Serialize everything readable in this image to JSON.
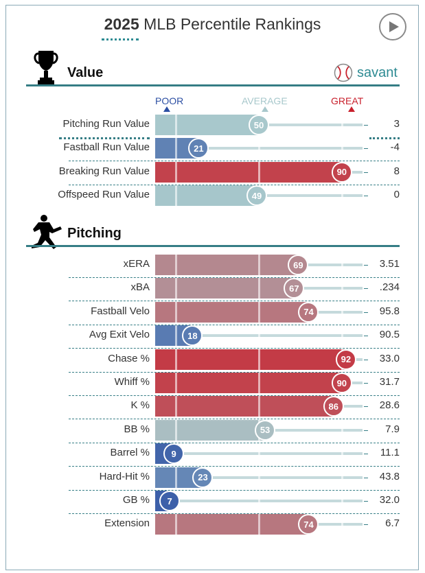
{
  "header": {
    "title_year": "2025",
    "title_rest": " MLB Percentile Rankings",
    "play_icon": "play-icon",
    "brand": "savant",
    "brand_icon": "baseball-icon"
  },
  "scale": {
    "poor": "POOR",
    "average": "AVERAGE",
    "great": "GREAT",
    "poor_color": "#2c4fa3",
    "average_color": "#a8c8cc",
    "great_color": "#c8202c"
  },
  "sections": {
    "value": {
      "title": "Value",
      "icon": "trophy-icon"
    },
    "pitching": {
      "title": "Pitching",
      "icon": "pitcher-icon"
    }
  },
  "chart_data": {
    "type": "bar",
    "xlim": [
      0,
      100
    ],
    "groups": [
      {
        "name": "Value",
        "rows": [
          {
            "label": "Pitching Run Value",
            "percentile": 50,
            "value": "3"
          },
          {
            "label": "Fastball Run Value",
            "percentile": 21,
            "value": "-4"
          },
          {
            "label": "Breaking Run Value",
            "percentile": 90,
            "value": "8"
          },
          {
            "label": "Offspeed Run Value",
            "percentile": 49,
            "value": "0"
          }
        ]
      },
      {
        "name": "Pitching",
        "rows": [
          {
            "label": "xERA",
            "percentile": 69,
            "value": "3.51"
          },
          {
            "label": "xBA",
            "percentile": 67,
            "value": ".234"
          },
          {
            "label": "Fastball Velo",
            "percentile": 74,
            "value": "95.8"
          },
          {
            "label": "Avg Exit Velo",
            "percentile": 18,
            "value": "90.5"
          },
          {
            "label": "Chase %",
            "percentile": 92,
            "value": "33.0"
          },
          {
            "label": "Whiff %",
            "percentile": 90,
            "value": "31.7"
          },
          {
            "label": "K %",
            "percentile": 86,
            "value": "28.6"
          },
          {
            "label": "BB %",
            "percentile": 53,
            "value": "7.9"
          },
          {
            "label": "Barrel %",
            "percentile": 9,
            "value": "11.1"
          },
          {
            "label": "Hard-Hit %",
            "percentile": 23,
            "value": "43.8"
          },
          {
            "label": "GB %",
            "percentile": 7,
            "value": "32.0"
          },
          {
            "label": "Extension",
            "percentile": 74,
            "value": "6.7"
          }
        ]
      }
    ]
  }
}
